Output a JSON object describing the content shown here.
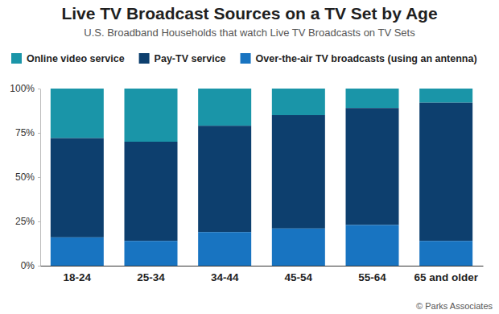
{
  "chart_data": {
    "type": "bar",
    "title": "Live TV Broadcast Sources on a TV Set by Age",
    "subtitle": "U.S. Broadband Households that watch Live TV Broadcasts on TV Sets",
    "source": "© Parks Associates",
    "categories": [
      "18-24",
      "25-34",
      "34-44",
      "45-54",
      "55-64",
      "65 and older"
    ],
    "series": [
      {
        "name": "Online video service",
        "color": "#1a95a8",
        "values": [
          28,
          30,
          21,
          15,
          11,
          8
        ]
      },
      {
        "name": "Pay-TV service",
        "color": "#0d3f6e",
        "values": [
          56,
          56,
          60,
          64,
          66,
          78
        ]
      },
      {
        "name": "Over-the-air TV broadcasts (using an antenna)",
        "color": "#1874c1",
        "values": [
          16,
          14,
          19,
          21,
          23,
          14
        ]
      }
    ],
    "stacked": true,
    "legend": "top",
    "grid": false,
    "ylim": [
      0,
      100
    ],
    "yticks": [
      {
        "value": 0,
        "label": "0%"
      },
      {
        "value": 25,
        "label": "25%"
      },
      {
        "value": 50,
        "label": "50%"
      },
      {
        "value": 75,
        "label": "75%"
      },
      {
        "value": 100,
        "label": "100%"
      }
    ]
  }
}
